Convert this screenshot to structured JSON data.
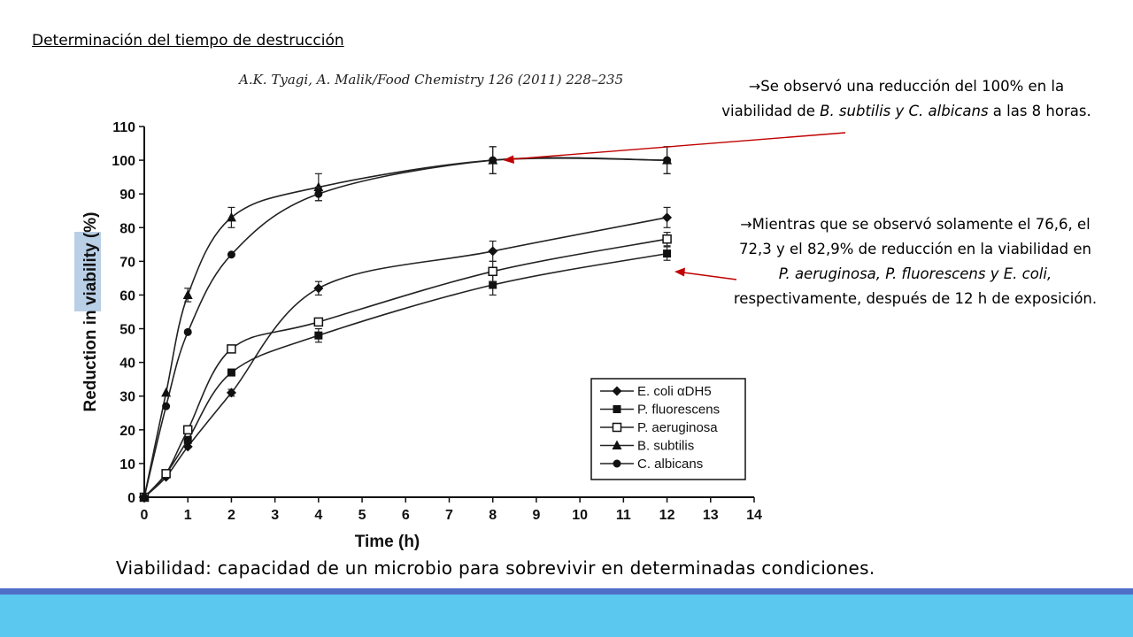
{
  "slide": {
    "title": "Determinación del tiempo de destrucción",
    "citation": "A.K. Tyagi, A. Malik/Food Chemistry 126 (2011) 228–235",
    "note1": {
      "arrow": "→",
      "text_a": "Se observó una reducción del 100% en la viabilidad de ",
      "text_b": "B. subtilis y C. albicans",
      "text_c": " a las 8 horas."
    },
    "note2": {
      "arrow": "→",
      "text_a": "Mientras que se observó solamente el 76,6, el 72,3 y el 82,9% de reducción en la viabilidad en ",
      "text_b": "P. aeruginosa, P. fluorescens y E. coli,",
      "text_c": " respectivamente, después de 12 h de exposición."
    },
    "definition": "Viabilidad: capacidad de un microbio para sobrevivir en determinadas condiciones."
  },
  "colors": {
    "band_dark": "#4f6ec7",
    "band_light": "#5bc8f0",
    "annotation_arrow": "#c00000",
    "ylabel_highlight": "#b9cfe6"
  },
  "chart_data": {
    "type": "line",
    "xlabel": "Time (h)",
    "ylabel": "Reduction in viability (%)",
    "xlim": [
      0,
      14
    ],
    "ylim": [
      0,
      110
    ],
    "xticks": [
      0,
      1,
      2,
      3,
      4,
      5,
      6,
      7,
      8,
      9,
      10,
      11,
      12,
      13,
      14
    ],
    "yticks": [
      0,
      10,
      20,
      30,
      40,
      50,
      60,
      70,
      80,
      90,
      100,
      110
    ],
    "grid": false,
    "legend_position": "bottom-right",
    "x": [
      0,
      0.5,
      1,
      2,
      4,
      8,
      12
    ],
    "series": [
      {
        "name": "E. coli αDH5",
        "marker": "diamond-filled",
        "values": [
          0,
          6,
          15,
          31,
          62,
          73,
          83
        ],
        "errors": [
          0,
          0,
          0,
          1,
          2,
          3,
          3
        ]
      },
      {
        "name": "P. fluorescens",
        "marker": "square-filled",
        "values": [
          0,
          7,
          17,
          37,
          48,
          63,
          72.3
        ],
        "errors": [
          0,
          0,
          0,
          1,
          2,
          3,
          2
        ]
      },
      {
        "name": "P. aeruginosa",
        "marker": "square-open",
        "values": [
          0,
          7,
          20,
          44,
          52,
          67,
          76.6
        ],
        "errors": [
          0,
          0,
          0,
          1,
          1,
          3,
          2
        ]
      },
      {
        "name": "B. subtilis",
        "marker": "triangle-filled",
        "values": [
          0,
          31,
          60,
          83,
          92,
          100,
          100
        ],
        "errors": [
          0,
          0,
          2,
          3,
          4,
          4,
          4
        ]
      },
      {
        "name": "C. albicans",
        "marker": "circle-filled",
        "values": [
          0,
          27,
          49,
          72,
          90,
          100,
          100
        ],
        "errors": [
          0,
          0,
          0,
          0,
          2,
          4,
          4
        ]
      }
    ]
  }
}
